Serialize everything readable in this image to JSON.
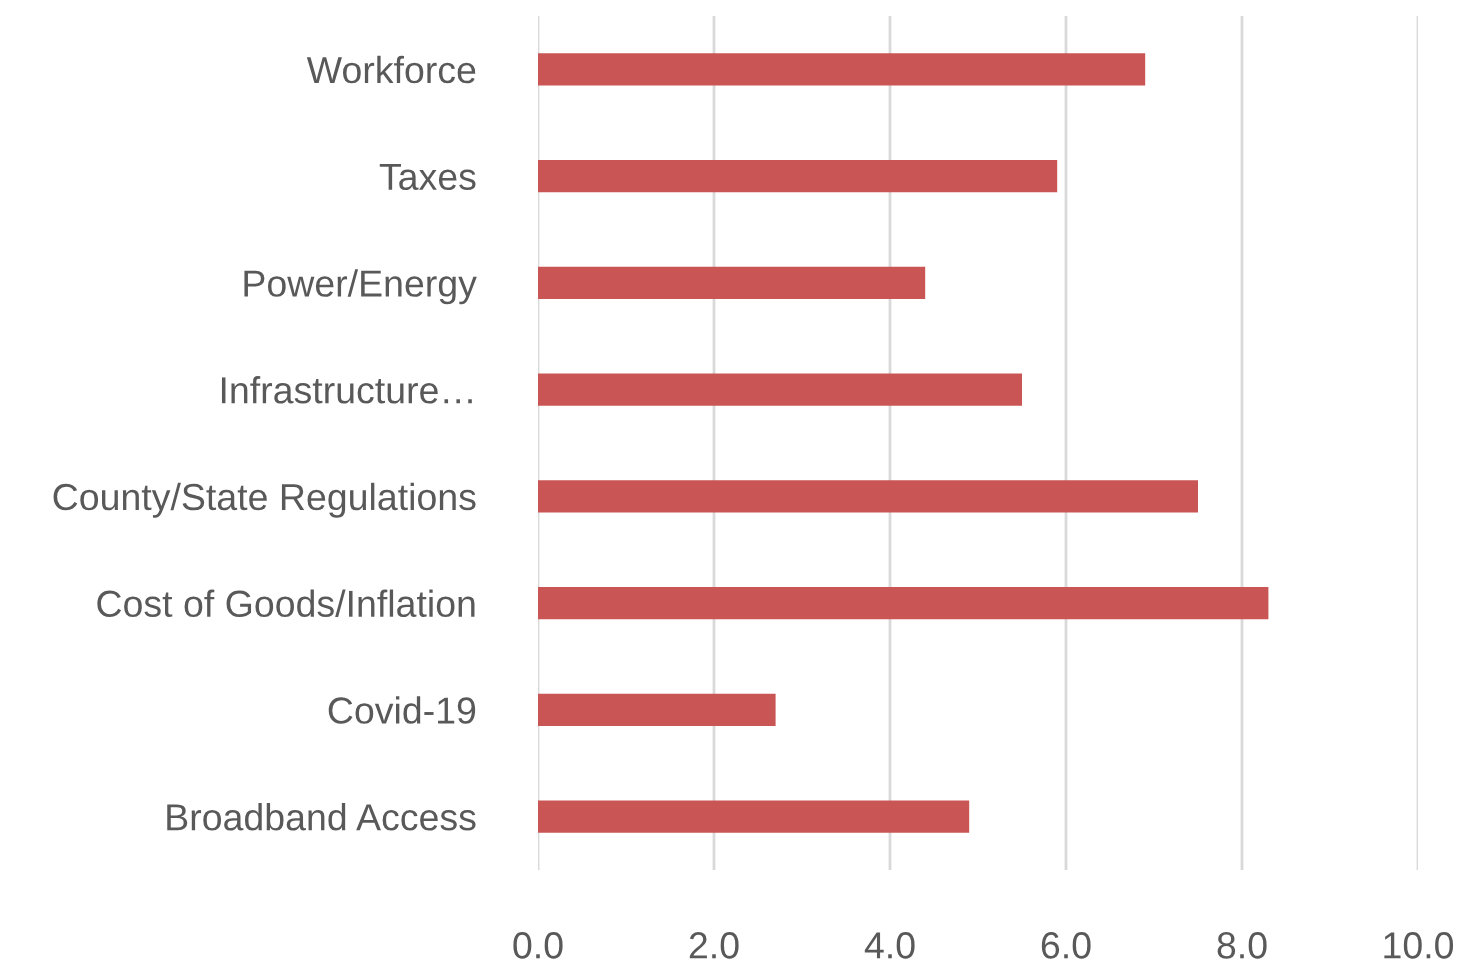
{
  "chart_data": {
    "type": "bar",
    "orientation": "horizontal",
    "categories": [
      "Workforce",
      "Taxes",
      "Power/Energy",
      "Infrastructure…",
      "County/State Regulations",
      "Cost of Goods/Inflation",
      "Covid-19",
      "Broadband Access"
    ],
    "values": [
      6.9,
      5.9,
      4.4,
      5.5,
      7.5,
      8.3,
      2.7,
      4.9
    ],
    "color": "#c95554",
    "xlim": [
      0,
      10
    ],
    "xticks": [
      {
        "value": 0,
        "label": "0.0"
      },
      {
        "value": 2,
        "label": "2.0"
      },
      {
        "value": 4,
        "label": "4.0"
      },
      {
        "value": 6,
        "label": "6.0"
      },
      {
        "value": 8,
        "label": "8.0"
      },
      {
        "value": 10,
        "label": "10.0"
      }
    ],
    "grid": "x"
  }
}
